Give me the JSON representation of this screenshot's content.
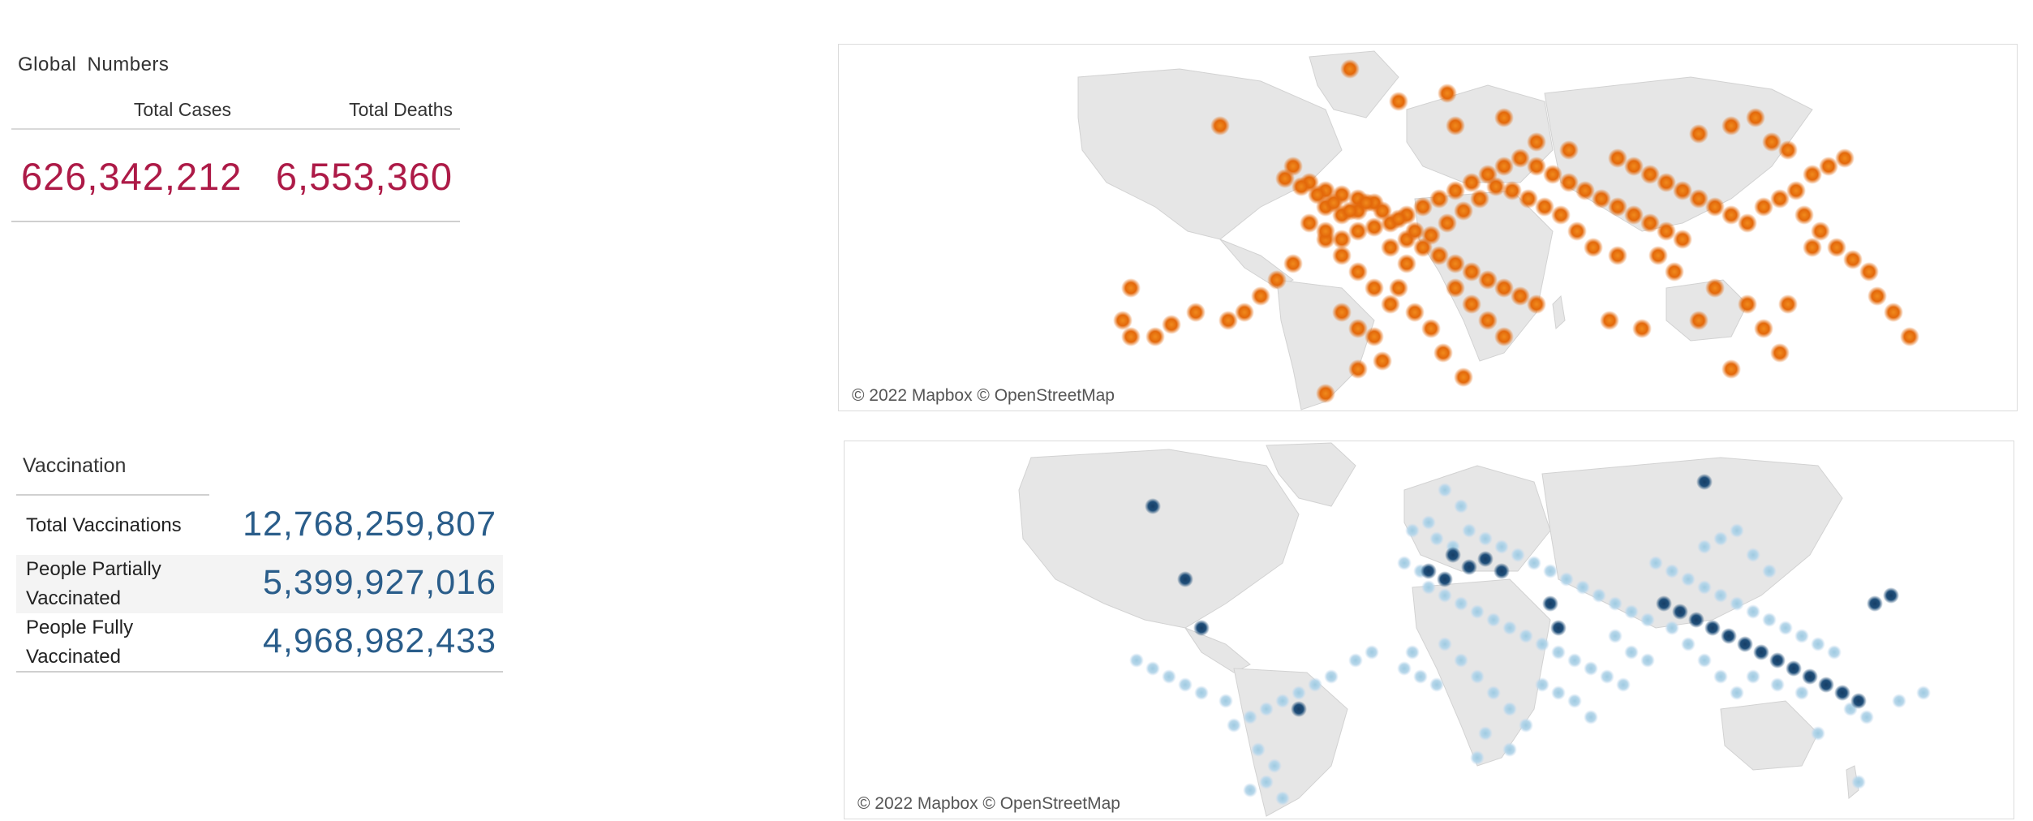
{
  "global_numbers": {
    "title": "Global Numbers",
    "total_cases_label": "Total Cases",
    "total_deaths_label": "Total Deaths",
    "total_cases_value": "626,342,212",
    "total_deaths_value": "6,553,360",
    "value_color": "#ad1a47"
  },
  "vaccination": {
    "title": "Vaccination",
    "rows": [
      {
        "label": "Total Vaccinations",
        "value": "12,768,259,807"
      },
      {
        "label": "People Partially Vaccinated",
        "value": "5,399,927,016"
      },
      {
        "label": "People Fully Vaccinated",
        "value": "4,968,982,433"
      }
    ],
    "value_color": "#2a5d8a"
  },
  "maps": {
    "cases_map": {
      "attribution": "© 2022 Mapbox © OpenStreetMap",
      "marker_color": "#e8710f"
    },
    "vaccination_map": {
      "attribution": "© 2022 Mapbox © OpenStreetMap",
      "marker_color_light": "#9ecae1",
      "marker_color_dark": "#1f4e79"
    }
  }
}
